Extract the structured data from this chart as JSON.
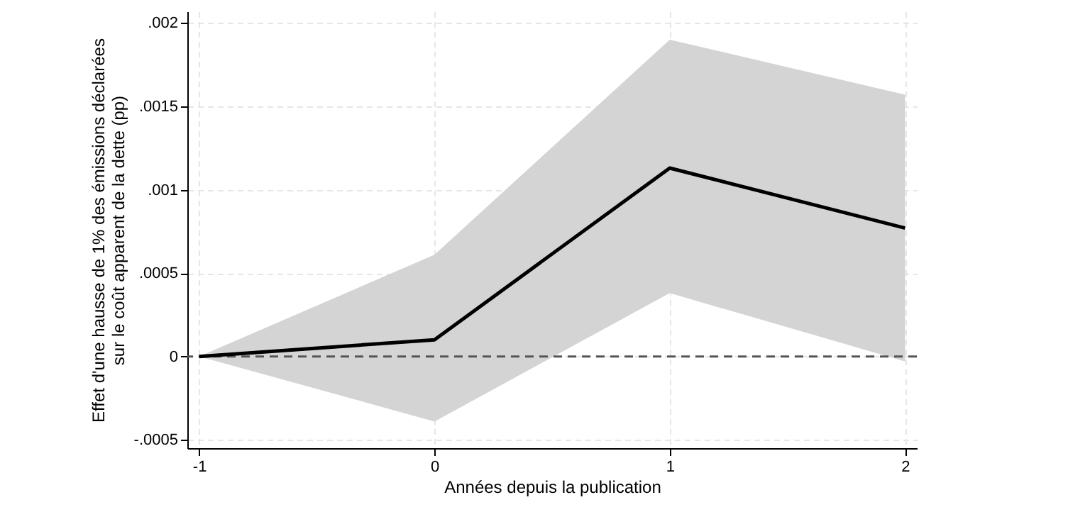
{
  "chart_data": {
    "type": "line",
    "xlabel": "Années depuis la publication",
    "ylabel": "Effet d'une hausse de 1% des émissions déclarées\nsur le coût apparent de la dette (pp)",
    "x": [
      -1,
      0,
      1,
      2
    ],
    "series": [
      {
        "color": "#000000",
        "values": [
          0,
          0.0001,
          0.00113,
          0.00077
        ],
        "lower": [
          0,
          -0.00039,
          0.00038,
          -3e-05
        ],
        "upper": [
          0,
          0.00061,
          0.0019,
          0.00157
        ]
      }
    ],
    "xlim": [
      -1.05,
      2.05
    ],
    "xticks": [
      -1,
      0,
      1,
      2
    ],
    "ylim": [
      -0.00055,
      0.00207
    ],
    "yticks": [
      {
        "value": -0.0005,
        "label": "-.0005"
      },
      {
        "value": 0,
        "label": "0"
      },
      {
        "value": 0.0005,
        "label": ".0005"
      },
      {
        "value": 0.001,
        "label": ".001"
      },
      {
        "value": 0.0015,
        "label": ".0015"
      },
      {
        "value": 0.002,
        "label": ".002"
      }
    ],
    "ref_lines": [
      {
        "axis": "y",
        "value": 0,
        "color": "#555555",
        "line_style": "dashed"
      }
    ],
    "grid": true,
    "line_style": "solid",
    "marker": "none"
  }
}
